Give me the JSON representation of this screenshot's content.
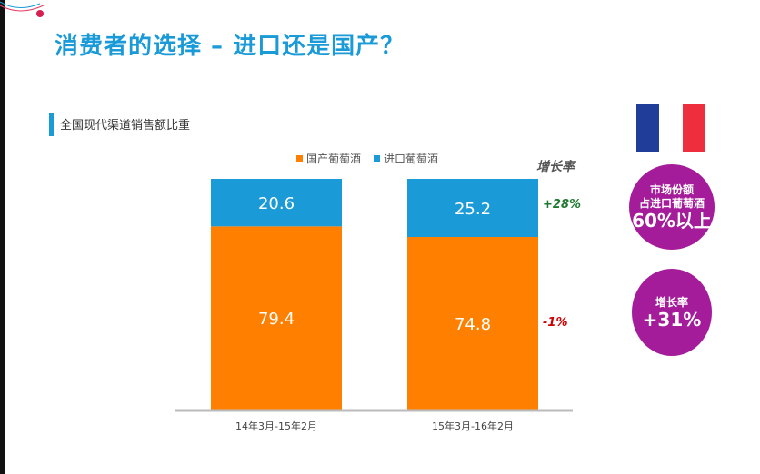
{
  "title": "消费者的选择 – 进口还是国产？",
  "section_label": "全国现代渠道销售额比重",
  "growth_header": "增长率",
  "colors": {
    "domestic": "#ff8000",
    "imported": "#1a9ad6",
    "title": "#1a9ad6",
    "growth_positive": "#1e7a2e",
    "growth_negative": "#cc0000",
    "bubble": "#a51c9a",
    "flag_blue": "#1f3d99",
    "flag_white": "#ffffff",
    "flag_red": "#ee2e3c"
  },
  "growth": {
    "imported": "+28%",
    "domestic": "-1%"
  },
  "flag_icon": "france-flag-icon",
  "bubble1": {
    "line1": "市场份额",
    "line2": "占进口葡萄酒",
    "line3": "60%以上"
  },
  "bubble2": {
    "line1": "增长率",
    "line2": "+31%"
  },
  "chart_data": {
    "type": "bar",
    "stacked": true,
    "categories": [
      "14年3月-15年2月",
      "15年3月-16年2月"
    ],
    "series": [
      {
        "name": "国产葡萄酒",
        "values": [
          79.4,
          74.8
        ]
      },
      {
        "name": "进口葡萄酒",
        "values": [
          20.6,
          25.2
        ]
      }
    ],
    "ylim": [
      0,
      100
    ],
    "grid": false,
    "legend": "top"
  }
}
